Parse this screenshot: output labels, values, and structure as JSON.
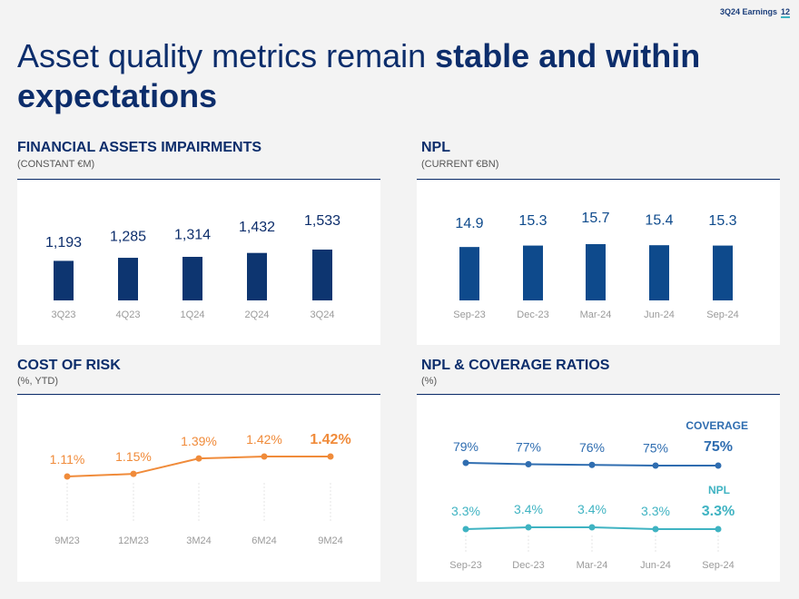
{
  "header": {
    "tag": "3Q24 Earnings",
    "page": "12"
  },
  "title": {
    "regular": "Asset quality metrics remain ",
    "bold": "stable and within expectations"
  },
  "colors": {
    "navy": "#0c2d6b",
    "bar1": "#0d3570",
    "bar2": "#0e4a8c",
    "orange": "#f08b3a",
    "blue": "#2f6db0",
    "teal": "#3fb3c2",
    "axis": "#9a9a9a"
  },
  "sections": {
    "impairments": {
      "title": "FINANCIAL ASSETS IMPAIRMENTS",
      "subtitle": "(CONSTANT €M)"
    },
    "npl": {
      "title": "NPL",
      "subtitle": "(CURRENT €BN)"
    },
    "cor": {
      "title": "COST OF RISK",
      "subtitle": "(%, YTD)"
    },
    "ratios": {
      "title": "NPL & COVERAGE RATIOS",
      "subtitle": "(%)"
    }
  },
  "chart_data": [
    {
      "id": "impairments",
      "type": "bar",
      "categories": [
        "3Q23",
        "4Q23",
        "1Q24",
        "2Q24",
        "3Q24"
      ],
      "values": [
        1193,
        1285,
        1314,
        1432,
        1533
      ],
      "labels": [
        "1,193",
        "1,285",
        "1,314",
        "1,432",
        "1,533"
      ],
      "ylim": [
        0,
        3000
      ]
    },
    {
      "id": "npl",
      "type": "bar",
      "categories": [
        "Sep-23",
        "Dec-23",
        "Mar-24",
        "Jun-24",
        "Sep-24"
      ],
      "values": [
        14.9,
        15.3,
        15.7,
        15.4,
        15.3
      ],
      "labels": [
        "14.9",
        "15.3",
        "15.7",
        "15.4",
        "15.3"
      ],
      "ylim": [
        0,
        25
      ]
    },
    {
      "id": "cor",
      "type": "line",
      "categories": [
        "9M23",
        "12M23",
        "3M24",
        "6M24",
        "9M24"
      ],
      "values": [
        1.11,
        1.15,
        1.39,
        1.42,
        1.42
      ],
      "labels": [
        "1.11%",
        "1.15%",
        "1.39%",
        "1.42%",
        "1.42%"
      ],
      "ylim": [
        0.5,
        1.6
      ]
    },
    {
      "id": "ratios",
      "type": "line",
      "categories": [
        "Sep-23",
        "Dec-23",
        "Mar-24",
        "Jun-24",
        "Sep-24"
      ],
      "series": [
        {
          "name": "COVERAGE",
          "values": [
            79,
            77,
            76,
            75,
            75
          ],
          "labels": [
            "79%",
            "77%",
            "76%",
            "75%",
            "75%"
          ]
        },
        {
          "name": "NPL",
          "values": [
            3.3,
            3.4,
            3.4,
            3.3,
            3.3
          ],
          "labels": [
            "3.3%",
            "3.4%",
            "3.4%",
            "3.3%",
            "3.3%"
          ]
        }
      ]
    }
  ]
}
